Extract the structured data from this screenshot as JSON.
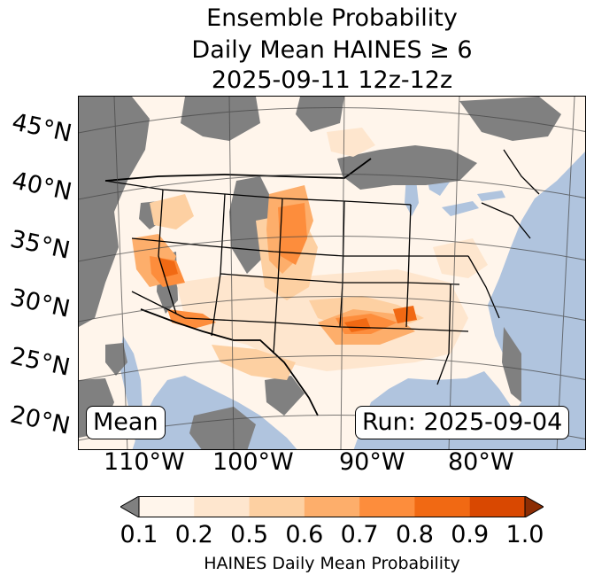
{
  "title": {
    "line1": "Ensemble Probability",
    "line2": "Daily Mean HAINES ≥ 6",
    "line3": "2025-09-11 12z-12z"
  },
  "lat_labels": [
    "45°N",
    "40°N",
    "35°N",
    "30°N",
    "25°N",
    "20°N"
  ],
  "lon_labels": [
    "110°W",
    "100°W",
    "90°W",
    "80°W"
  ],
  "badges": {
    "mean": "Mean",
    "run": "Run: 2025-09-04"
  },
  "colorbar": {
    "ticks": [
      "0.1",
      "0.2",
      "0.5",
      "0.6",
      "0.7",
      "0.8",
      "0.9",
      "1.0"
    ],
    "label": "HAINES Daily Mean Probability",
    "under_color": "#808080",
    "colors": [
      "#fff5eb",
      "#fee6ce",
      "#fdd0a2",
      "#fdae6b",
      "#fd8d3c",
      "#f16913",
      "#d94801"
    ],
    "over_color": "#8c2d04"
  },
  "map_colors": {
    "ocean": "#b0c4de",
    "land": "#fff5eb",
    "no_data": "#808080"
  }
}
